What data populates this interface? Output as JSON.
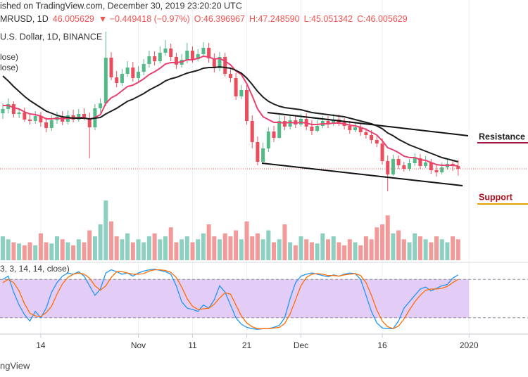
{
  "header": {
    "published": "ished on TradingView.com, December 30, 2019 23:20:20 UTC",
    "symbol": "MRUSD, 1D",
    "last": "46.005629",
    "change": "▼ −0.449418 (−0.97%)",
    "ohlc": [
      "O:46.396967",
      "H:47.248590",
      "L:45.051342",
      "C:46.005629"
    ],
    "exchange": "U.S. Dollar, 1D, BINANCE",
    "watermark": "ngView",
    "annotations": [
      "Resistance",
      "Support"
    ]
  },
  "chart_data": {
    "type": "candlestick",
    "xlim": [
      -0.52,
      96.88
    ],
    "xticks": [
      {
        "value": 7,
        "label": "14"
      },
      {
        "value": 25,
        "label": "Nov"
      },
      {
        "value": 35,
        "label": "11"
      },
      {
        "value": 45,
        "label": "21"
      },
      {
        "value": 55,
        "label": "Dec"
      },
      {
        "value": 70,
        "label": "16"
      },
      {
        "value": 86,
        "label": "2020"
      }
    ],
    "grid": true,
    "ylim": [
      33,
      70
    ],
    "up_color": "#53b987",
    "down_color": "#eb4d5c",
    "open": [
      53.9,
      54.5,
      55.2,
      53.8,
      54.0,
      53.0,
      52.8,
      53.5,
      52.6,
      51.8,
      52.9,
      53.4,
      52.7,
      53.6,
      53.0,
      53.8,
      53.2,
      51.9,
      54.6,
      55.3,
      61.8,
      59.0,
      58.2,
      59.5,
      60.4,
      58.9,
      59.8,
      60.9,
      62.0,
      61.3,
      62.5,
      63.1,
      61.9,
      60.8,
      61.5,
      62.8,
      61.6,
      62.3,
      63.2,
      61.7,
      60.3,
      61.9,
      59.5,
      58.9,
      56.3,
      57.2,
      52.8,
      49.8,
      47.0,
      48.9,
      51.3,
      50.4,
      52.8,
      52.0,
      52.9,
      52.3,
      53.1,
      52.0,
      51.4,
      52.1,
      52.8,
      52.4,
      53.0,
      52.6,
      52.1,
      51.5,
      51.9,
      51.2,
      50.8,
      50.1,
      49.6,
      47.1,
      45.2,
      47.4,
      46.5,
      46.0,
      46.8,
      47.5,
      46.4,
      46.9,
      45.8,
      45.5,
      46.2,
      46.7,
      46.396967
    ],
    "high": [
      55.3,
      56.0,
      55.6,
      54.6,
      54.7,
      53.8,
      54.2,
      54.1,
      53.3,
      53.6,
      54.1,
      54.2,
      54.3,
      54.4,
      54.5,
      54.6,
      54.0,
      55.2,
      56.0,
      65.5,
      62.6,
      59.9,
      60.2,
      61.3,
      61.2,
      60.6,
      61.6,
      62.8,
      62.7,
      63.4,
      64.3,
      63.8,
      62.5,
      62.3,
      63.9,
      63.4,
      63.0,
      64.0,
      63.9,
      62.4,
      62.6,
      62.5,
      60.2,
      59.6,
      57.9,
      57.9,
      53.6,
      50.6,
      49.7,
      51.9,
      52.1,
      53.6,
      53.5,
      53.7,
      53.6,
      53.8,
      53.9,
      52.9,
      52.9,
      53.5,
      53.5,
      53.8,
      53.7,
      53.2,
      52.8,
      52.6,
      52.4,
      51.8,
      51.5,
      50.6,
      50.3,
      47.9,
      48.0,
      47.9,
      47.0,
      47.4,
      48.2,
      48.1,
      47.8,
      47.4,
      46.5,
      46.9,
      47.4,
      47.1,
      47.24859
    ],
    "low": [
      53.1,
      53.9,
      53.3,
      53.2,
      52.7,
      52.3,
      52.4,
      52.0,
      51.2,
      51.4,
      52.4,
      52.2,
      52.3,
      52.6,
      52.7,
      52.9,
      47.5,
      51.5,
      54.0,
      54.9,
      58.6,
      57.6,
      57.8,
      59.1,
      58.4,
      58.4,
      59.3,
      60.4,
      60.7,
      61.0,
      62.1,
      61.3,
      60.2,
      60.4,
      61.0,
      61.1,
      61.3,
      61.9,
      61.1,
      59.7,
      59.9,
      59.1,
      58.3,
      55.8,
      55.9,
      52.3,
      48.9,
      46.5,
      46.8,
      48.4,
      49.8,
      50.3,
      51.5,
      51.6,
      51.8,
      52.0,
      51.5,
      50.8,
      51.2,
      51.8,
      51.8,
      52.1,
      52.1,
      51.6,
      51.0,
      51.2,
      50.7,
      50.3,
      49.6,
      49.1,
      46.6,
      42.8,
      45.0,
      46.0,
      45.6,
      45.7,
      46.4,
      46.0,
      46.1,
      45.3,
      44.9,
      45.2,
      45.9,
      45.7,
      45.051342
    ],
    "close": [
      54.5,
      55.2,
      53.8,
      54.0,
      53.0,
      52.8,
      53.5,
      52.6,
      51.8,
      52.9,
      53.4,
      52.7,
      53.6,
      53.0,
      53.8,
      53.2,
      51.9,
      54.6,
      55.3,
      61.8,
      59.0,
      58.2,
      59.5,
      60.4,
      58.9,
      59.8,
      60.9,
      62.0,
      61.3,
      62.5,
      63.1,
      61.9,
      60.8,
      61.5,
      62.8,
      61.6,
      62.3,
      63.2,
      61.7,
      60.3,
      61.9,
      59.5,
      58.9,
      56.3,
      57.2,
      52.8,
      49.8,
      47.0,
      48.9,
      51.3,
      50.4,
      52.8,
      52.0,
      52.9,
      52.3,
      53.1,
      52.0,
      51.4,
      52.1,
      52.8,
      52.4,
      53.0,
      52.6,
      52.1,
      51.5,
      51.9,
      51.2,
      50.8,
      50.1,
      49.6,
      47.1,
      45.2,
      47.4,
      46.5,
      46.0,
      46.8,
      47.5,
      46.4,
      46.9,
      45.8,
      45.5,
      46.2,
      46.7,
      46.4,
      46.005629
    ],
    "lines": [
      {
        "name": "lose)",
        "color": "#e8416f",
        "values": [
          55.0,
          55.0,
          54.7,
          54.5,
          54.1,
          53.8,
          53.7,
          53.5,
          53.1,
          53.1,
          53.2,
          53.1,
          53.2,
          53.2,
          53.3,
          53.3,
          53.0,
          53.3,
          53.7,
          55.3,
          56.1,
          56.5,
          57.1,
          57.7,
          57.9,
          58.3,
          58.8,
          59.4,
          59.8,
          60.3,
          60.9,
          61.1,
          61.1,
          61.2,
          61.5,
          61.5,
          61.7,
          62.0,
          61.9,
          61.6,
          61.7,
          61.3,
          60.8,
          59.9,
          59.4,
          58.1,
          56.4,
          54.5,
          53.4,
          53.0,
          52.6,
          52.6,
          52.5,
          52.6,
          52.5,
          52.6,
          52.5,
          52.3,
          52.3,
          52.4,
          52.4,
          52.5,
          52.5,
          52.4,
          52.2,
          52.1,
          51.9,
          51.6,
          51.2,
          50.8,
          50.0,
          49.0,
          48.7,
          48.3,
          47.8,
          47.6,
          47.6,
          47.3,
          47.2,
          46.9,
          46.6,
          46.5,
          46.5,
          46.5,
          46.4
        ]
      },
      {
        "name": "lose)",
        "color": "#1e1e1e",
        "values": [
          59.2,
          58.5,
          57.7,
          57.0,
          56.3,
          55.7,
          55.2,
          54.7,
          54.2,
          53.9,
          53.6,
          53.4,
          53.3,
          53.2,
          53.2,
          53.2,
          53.1,
          53.2,
          53.3,
          53.8,
          54.2,
          54.6,
          55.1,
          55.6,
          55.9,
          56.3,
          56.7,
          57.2,
          57.6,
          58.0,
          58.5,
          58.8,
          59.0,
          59.3,
          59.6,
          59.8,
          60.0,
          60.3,
          60.4,
          60.4,
          60.5,
          60.4,
          60.3,
          60.0,
          59.6,
          58.9,
          58.0,
          57.0,
          56.2,
          55.6,
          55.2,
          54.9,
          54.7,
          54.6,
          54.5,
          54.4,
          54.2,
          54.0,
          53.9,
          53.8,
          53.7,
          53.6,
          53.5,
          53.4,
          53.2,
          53.0,
          52.8,
          52.6,
          52.4,
          52.1,
          51.7,
          51.1,
          50.7,
          50.2,
          49.8,
          49.4,
          49.1,
          48.8,
          48.5,
          48.2,
          47.9,
          47.6,
          47.4,
          47.2,
          47.0
        ]
      }
    ],
    "volume": {
      "ylim": [
        0,
        100
      ],
      "up_color": "#8dcfc0",
      "down_color": "#f29a9a",
      "values": [
        40,
        35,
        30,
        28,
        25,
        30,
        25,
        45,
        30,
        28,
        40,
        35,
        30,
        25,
        35,
        30,
        50,
        40,
        60,
        100,
        65,
        40,
        35,
        45,
        30,
        35,
        30,
        40,
        45,
        35,
        40,
        55,
        30,
        35,
        40,
        30,
        35,
        45,
        60,
        40,
        35,
        45,
        40,
        50,
        35,
        65,
        40,
        45,
        35,
        50,
        30,
        35,
        60,
        30,
        25,
        40,
        35,
        30,
        28,
        45,
        35,
        40,
        30,
        25,
        35,
        30,
        25,
        40,
        35,
        55,
        60,
        75,
        45,
        50,
        35,
        30,
        45,
        40,
        35,
        30,
        40,
        35,
        30,
        40,
        35
      ]
    },
    "oscillator": {
      "label": "3, 3, 14, 14, close)",
      "ylim": [
        0,
        100
      ],
      "bands": [
        20,
        80
      ],
      "band_color": "#e3cdf6",
      "series": [
        {
          "color": "#2196f3",
          "values": [
            80,
            85,
            60,
            40,
            25,
            15,
            30,
            20,
            35,
            60,
            75,
            85,
            90,
            88,
            92,
            85,
            70,
            55,
            65,
            90,
            95,
            92,
            88,
            90,
            85,
            90,
            93,
            95,
            96,
            94,
            92,
            88,
            70,
            45,
            35,
            33,
            30,
            40,
            35,
            48,
            70,
            60,
            40,
            20,
            10,
            5,
            3,
            2,
            3,
            3,
            5,
            8,
            20,
            50,
            75,
            85,
            88,
            90,
            88,
            86,
            84,
            87,
            85,
            88,
            90,
            89,
            80,
            55,
            30,
            12,
            4,
            3,
            3,
            15,
            35,
            45,
            55,
            65,
            68,
            62,
            66,
            70,
            72,
            82,
            87
          ]
        },
        {
          "color": "#ff6d00",
          "values": [
            75,
            80,
            75,
            62,
            42,
            27,
            23,
            22,
            28,
            38,
            57,
            73,
            83,
            88,
            90,
            88,
            82,
            70,
            63,
            70,
            83,
            92,
            92,
            90,
            88,
            88,
            89,
            93,
            95,
            95,
            94,
            91,
            83,
            68,
            50,
            38,
            33,
            34,
            35,
            41,
            51,
            59,
            57,
            40,
            23,
            12,
            6,
            3,
            3,
            3,
            4,
            5,
            11,
            26,
            48,
            70,
            83,
            88,
            89,
            88,
            86,
            86,
            85,
            87,
            88,
            89,
            86,
            75,
            55,
            32,
            15,
            6,
            3,
            7,
            18,
            32,
            45,
            55,
            63,
            65,
            65,
            66,
            69,
            75,
            80
          ]
        }
      ]
    }
  }
}
